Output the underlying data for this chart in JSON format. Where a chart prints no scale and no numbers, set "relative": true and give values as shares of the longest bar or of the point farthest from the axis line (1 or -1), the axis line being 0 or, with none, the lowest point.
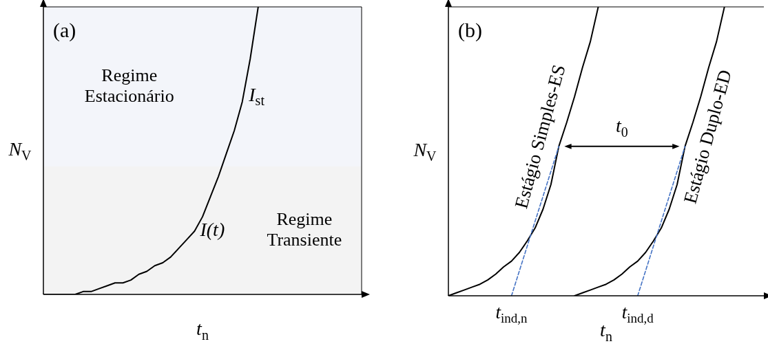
{
  "chart_data": [
    {
      "type": "line",
      "title": "(a)",
      "xlabel": "t$_{n}$",
      "ylabel": "N$_{V}$",
      "relative": true,
      "tick_labels": false,
      "marker": "none",
      "categories": [
        null,
        null,
        null,
        null,
        null,
        null,
        null,
        null,
        null,
        null,
        null,
        null,
        null,
        null,
        null,
        null,
        null,
        null,
        null,
        null,
        null,
        null,
        null,
        null,
        null,
        null,
        null,
        null,
        null,
        null,
        null,
        null,
        null,
        null,
        null,
        null,
        null,
        null,
        null,
        null,
        null
      ],
      "series": [
        {
          "color": "#000000",
          "values": [
            0,
            0,
            0,
            0,
            0,
            0.01,
            0.01,
            0.02,
            0.03,
            0.04,
            0.04,
            0.05,
            0.07,
            0.08,
            0.1,
            0.11,
            0.13,
            0.16,
            0.19,
            0.22,
            0.27,
            0.34,
            0.41,
            0.49,
            0.57,
            0.67,
            0.82,
            1,
            null,
            null,
            null,
            null,
            null,
            null,
            null,
            null,
            null,
            null,
            null,
            null,
            null
          ]
        }
      ],
      "bands": [
        {
          "axis": "y",
          "from": 0.445,
          "to": 1,
          "label": "Regime Estacionário",
          "color": "#f3f5fa"
        },
        {
          "axis": "y",
          "from": 0,
          "to": 0.445,
          "label": "Regime Transiente",
          "color": "#f3f3f3"
        }
      ],
      "annotations": [
        "I$_{st}$",
        "I(t)"
      ]
    },
    {
      "type": "line",
      "title": "(b)",
      "xlabel": "t$_{n}$",
      "ylabel": "N$_{V}$",
      "relative": true,
      "tick_labels": "x",
      "marker": "none",
      "categories": [
        null,
        null,
        null,
        null,
        null,
        null,
        null,
        null,
        "t$_{ind,n}$",
        null,
        null,
        null,
        null,
        null,
        null,
        null,
        null,
        null,
        null,
        null,
        null,
        null,
        null,
        null,
        "t$_{ind,d}$",
        null,
        null,
        null,
        null,
        null,
        null,
        null,
        null,
        null,
        null,
        null,
        null,
        null,
        null,
        null,
        null
      ],
      "series": [
        {
          "name": "Estágio Simples-ES",
          "color": "#000000",
          "values": [
            0,
            0.01,
            0.02,
            0.03,
            0.04,
            0.055,
            0.075,
            0.1,
            0.12,
            0.15,
            0.19,
            0.235,
            0.3,
            0.385,
            0.517,
            0.6,
            0.69,
            0.79,
            0.88,
            1,
            null,
            null,
            null,
            null,
            null,
            null,
            null,
            null,
            null,
            null,
            null,
            null,
            null,
            null,
            null,
            null,
            null,
            null,
            null,
            null,
            null
          ]
        },
        {
          "name": "Estágio Duplo-ED",
          "color": "#000000",
          "values": [
            null,
            null,
            null,
            null,
            null,
            null,
            null,
            null,
            null,
            null,
            null,
            null,
            null,
            null,
            null,
            null,
            0,
            0.01,
            0.02,
            0.03,
            0.04,
            0.055,
            0.075,
            0.1,
            0.12,
            0.15,
            0.19,
            0.235,
            0.3,
            0.385,
            0.517,
            0.6,
            0.69,
            0.79,
            0.88,
            1,
            null,
            null,
            null,
            null,
            null
          ]
        },
        {
          "color": "#4472c4",
          "line_style": "dashed",
          "values": [
            null,
            null,
            null,
            null,
            null,
            null,
            null,
            null,
            0,
            null,
            null,
            null,
            null,
            null,
            0.517,
            null,
            null,
            null,
            null,
            null,
            null,
            null,
            null,
            null,
            null,
            null,
            null,
            null,
            null,
            null,
            null,
            null,
            null,
            null,
            null,
            null,
            null,
            null,
            null,
            null,
            null
          ]
        },
        {
          "color": "#4472c4",
          "line_style": "dashed",
          "values": [
            null,
            null,
            null,
            null,
            null,
            null,
            null,
            null,
            null,
            null,
            null,
            null,
            null,
            null,
            null,
            null,
            null,
            null,
            null,
            null,
            null,
            null,
            null,
            null,
            0,
            null,
            null,
            null,
            null,
            null,
            0.517,
            null,
            null,
            null,
            null,
            null,
            null,
            null,
            null,
            null,
            null
          ]
        }
      ],
      "annotations": [
        "t$_{0}$"
      ]
    }
  ]
}
